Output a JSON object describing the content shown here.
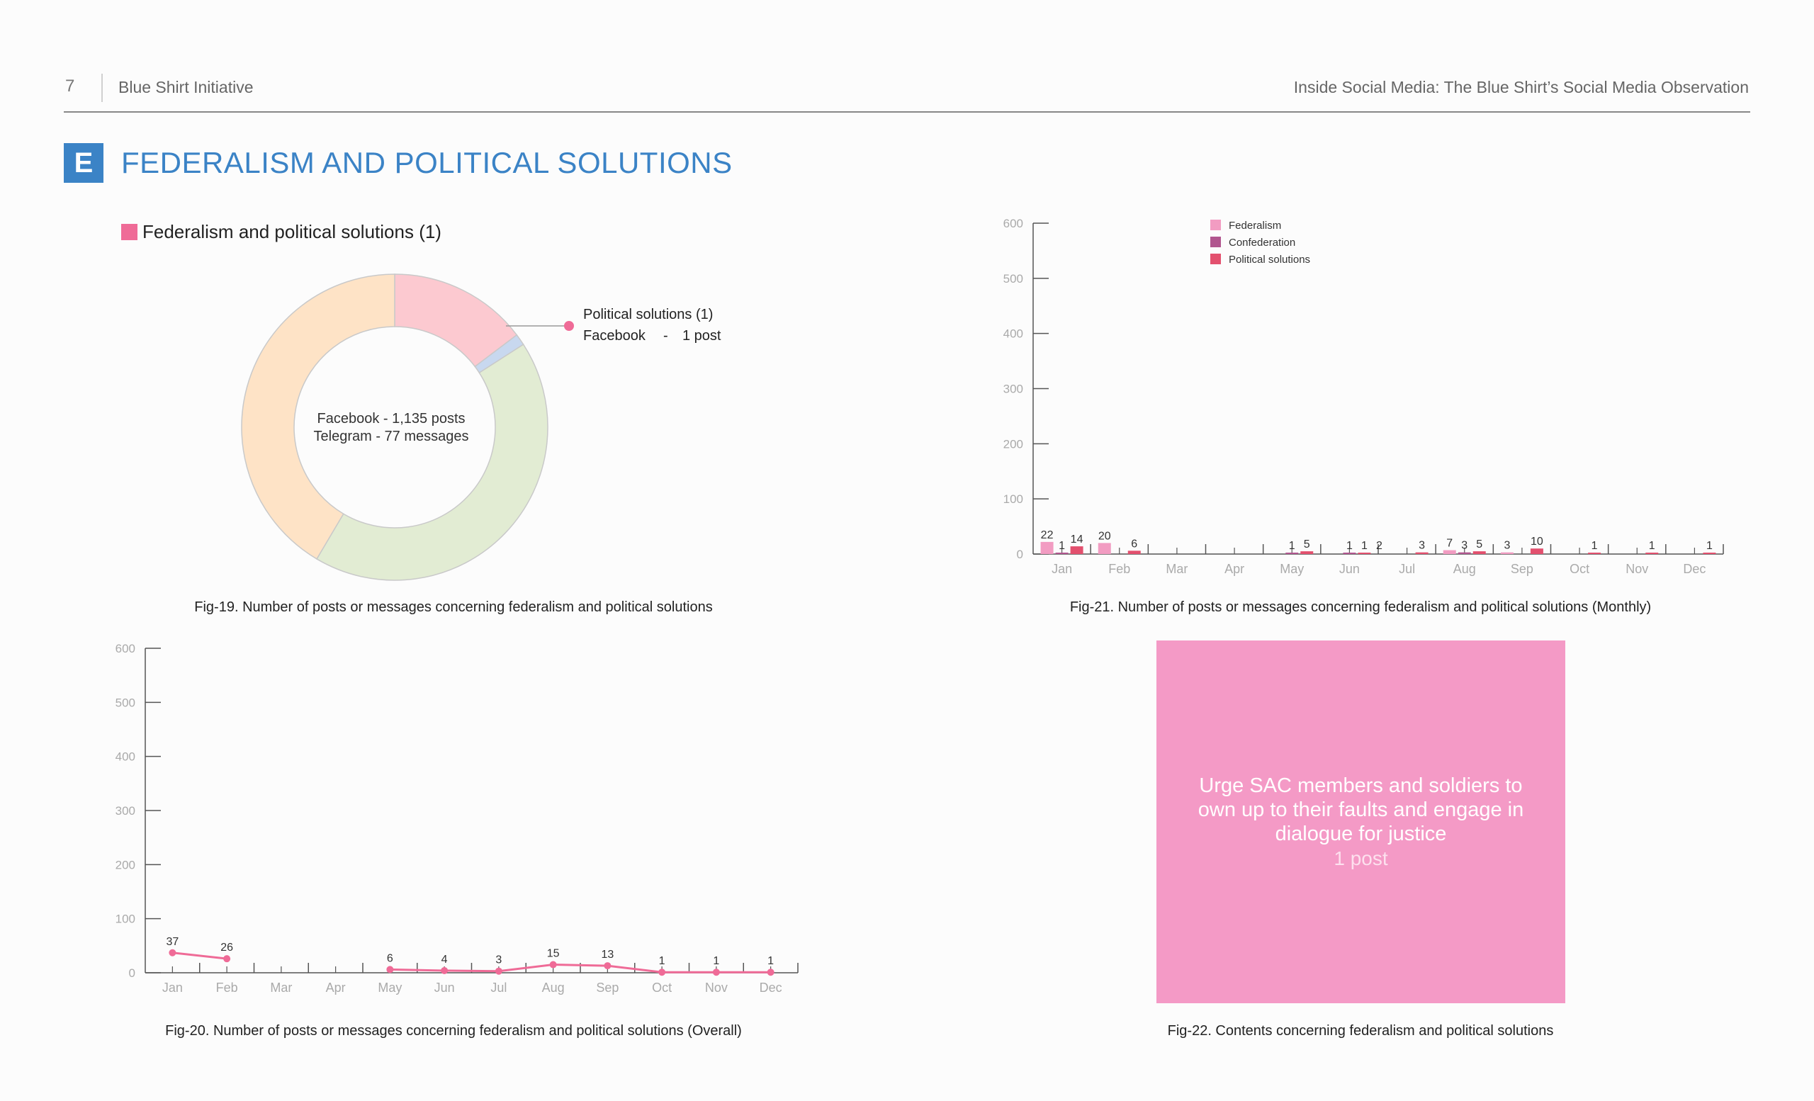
{
  "header": {
    "page_number": "7",
    "organization": "Blue Shirt Initiative",
    "document_title": "Inside Social Media: The Blue Shirt’s Social Media Observation"
  },
  "section": {
    "badge": "E",
    "title": "FEDERALISM AND POLITICAL SOLUTIONS"
  },
  "colors": {
    "accent": "#3b83c6",
    "federalism": "#f29cc2",
    "confederation": "#b1568f",
    "political_solutions": "#e3506e",
    "line": "#ef6b97",
    "content_box": "#f49ac6"
  },
  "captions": {
    "fig19": "Fig-19. Number of posts or messages concerning federalism and political solutions",
    "fig20": "Fig-20. Number of posts or messages concerning federalism and political solutions  (Overall)",
    "fig21": "Fig-21. Number of posts or messages concerning federalism and political solutions  (Monthly)",
    "fig22": "Fig-22. Contents concerning federalism and political solutions"
  },
  "content_box": {
    "text": "Urge SAC members and soldiers to own up to their faults and engage in dialogue for justice",
    "count": "1 post"
  },
  "chart_data": [
    {
      "id": "fig19",
      "type": "pie",
      "legend": "Federalism and political solutions (1)",
      "center_lines": [
        "Facebook - 1,135 posts",
        "Telegram - 77 messages"
      ],
      "callout": {
        "title": "Political solutions (1)",
        "platform": "Facebook",
        "sep": "-",
        "count": "1 post"
      },
      "slices": [
        {
          "fraction": 0.147,
          "color": "#fcc9d0"
        },
        {
          "fraction": 0.012,
          "color": "#c8d8ef"
        },
        {
          "fraction": 0.426,
          "color": "#e2ecd3"
        },
        {
          "fraction": 0.415,
          "color": "#fee3c6"
        }
      ]
    },
    {
      "id": "fig20",
      "type": "line",
      "categories": [
        "Jan",
        "Feb",
        "Mar",
        "Apr",
        "May",
        "Jun",
        "Jul",
        "Aug",
        "Sep",
        "Oct",
        "Nov",
        "Dec"
      ],
      "ylim": [
        0,
        600
      ],
      "yticks": [
        "0",
        "100",
        "200",
        "300",
        "400",
        "500",
        "600"
      ],
      "series": [
        {
          "values": [
            37,
            26,
            null,
            null,
            6,
            4,
            3,
            15,
            13,
            1,
            1,
            1
          ],
          "labels": [
            "37",
            "26",
            "",
            "",
            "6",
            "4",
            "3",
            "15",
            "13",
            "1",
            "1",
            "1"
          ]
        }
      ]
    },
    {
      "id": "fig21",
      "type": "bar",
      "categories": [
        "Jan",
        "Feb",
        "Mar",
        "Apr",
        "May",
        "Jun",
        "Jul",
        "Aug",
        "Sep",
        "Oct",
        "Nov",
        "Dec"
      ],
      "ylim": [
        0,
        600
      ],
      "yticks": [
        "0",
        "100",
        "200",
        "300",
        "400",
        "500",
        "600"
      ],
      "legend_position": "top",
      "series": [
        {
          "name": "Federalism",
          "values": [
            22,
            20,
            null,
            null,
            null,
            null,
            null,
            7,
            3,
            null,
            null,
            null
          ]
        },
        {
          "name": "Confederation",
          "values": [
            1,
            null,
            null,
            null,
            1,
            1,
            null,
            3,
            null,
            null,
            null,
            null
          ]
        },
        {
          "name": "Political solutions",
          "values": [
            14,
            6,
            null,
            null,
            5,
            1,
            3,
            5,
            10,
            1,
            1,
            1
          ]
        }
      ],
      "extra_labels": [
        {
          "month_index": 5,
          "value": 2
        }
      ]
    }
  ]
}
